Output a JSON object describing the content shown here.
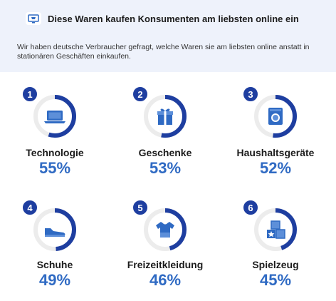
{
  "header": {
    "title": "Diese Waren kaufen Konsumenten am liebsten online ein",
    "title_icon": "screen-cart-icon",
    "subtitle": "Wir haben deutsche Verbraucher gefragt, welche Waren sie am liebsten online anstatt in stationären Geschäften einkaufen."
  },
  "colors": {
    "accent": "#2f6ac3",
    "badge": "#1e3ea0",
    "ring_track": "#ececec",
    "header_bg": "#eef2fb"
  },
  "items": [
    {
      "rank": "1",
      "label": "Technologie",
      "percent": "55%",
      "value": 55,
      "icon": "laptop-icon"
    },
    {
      "rank": "2",
      "label": "Geschenke",
      "percent": "53%",
      "value": 53,
      "icon": "gift-icon"
    },
    {
      "rank": "3",
      "label": "Haushaltsgeräte",
      "percent": "52%",
      "value": 52,
      "icon": "washing-machine-icon"
    },
    {
      "rank": "4",
      "label": "Schuhe",
      "percent": "49%",
      "value": 49,
      "icon": "shoe-icon"
    },
    {
      "rank": "5",
      "label": "Freizeitkleidung",
      "percent": "46%",
      "value": 46,
      "icon": "tshirt-icon"
    },
    {
      "rank": "6",
      "label": "Spielzeug",
      "percent": "45%",
      "value": 45,
      "icon": "toy-blocks-icon"
    }
  ]
}
